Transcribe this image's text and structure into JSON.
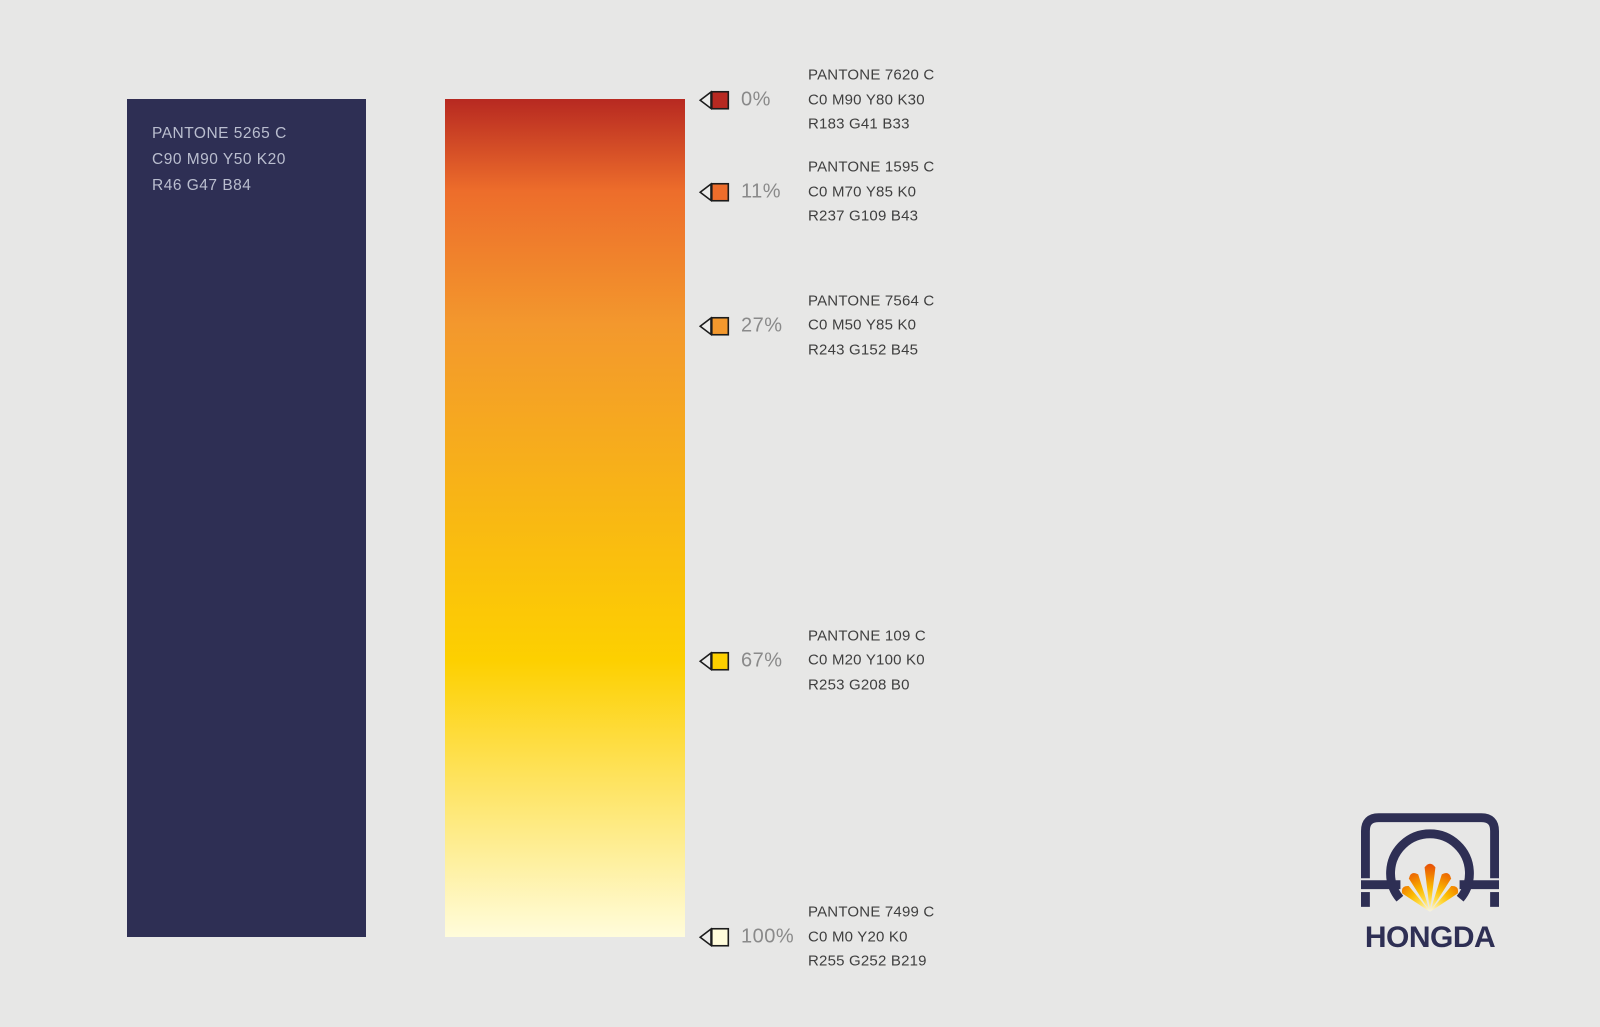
{
  "page": {
    "background": "#e7e7e6"
  },
  "primary_swatch": {
    "pantone": "PANTONE 5265 C",
    "cmyk": "C90 M90 Y50 K20",
    "rgb": "R46 G47 B84",
    "hex": "#2E2F54",
    "text_color": "#BABECF"
  },
  "gradient_bar": {
    "direction": "top-to-bottom"
  },
  "gradient_stops": [
    {
      "percent_label": "0%",
      "position_pct": 0,
      "pantone": "PANTONE 7620 C",
      "cmyk": "C0 M90 Y80 K30",
      "rgb": "R183 G41 B33",
      "hex": "#B72921"
    },
    {
      "percent_label": "11%",
      "position_pct": 11,
      "pantone": "PANTONE 1595 C",
      "cmyk": "C0 M70 Y85 K0",
      "rgb": "R237 G109 B43",
      "hex": "#ED6D2B"
    },
    {
      "percent_label": "27%",
      "position_pct": 27,
      "pantone": "PANTONE 7564 C",
      "cmyk": "C0 M50 Y85 K0",
      "rgb": "R243 G152 B45",
      "hex": "#F3982D"
    },
    {
      "percent_label": "67%",
      "position_pct": 67,
      "pantone": "PANTONE 109 C",
      "cmyk": "C0 M20 Y100 K0",
      "rgb": "R253 G208 B0",
      "hex": "#FDD000"
    },
    {
      "percent_label": "100%",
      "position_pct": 100,
      "pantone": "PANTONE 7499 C",
      "cmyk": "C0 M0 Y20 K0",
      "rgb": "R255 G252 B219",
      "hex": "#FFFCDB"
    }
  ],
  "marker": {
    "arrow_fill": "#ECECEA",
    "outline": "#1C1C1C"
  },
  "logo": {
    "wordmark": "HONGDA",
    "navy": "#2E2F54",
    "fan_colors": [
      "#E23A0D",
      "#F07B00",
      "#FBBA00",
      "#FFDC48",
      "#FFFBE8"
    ]
  }
}
